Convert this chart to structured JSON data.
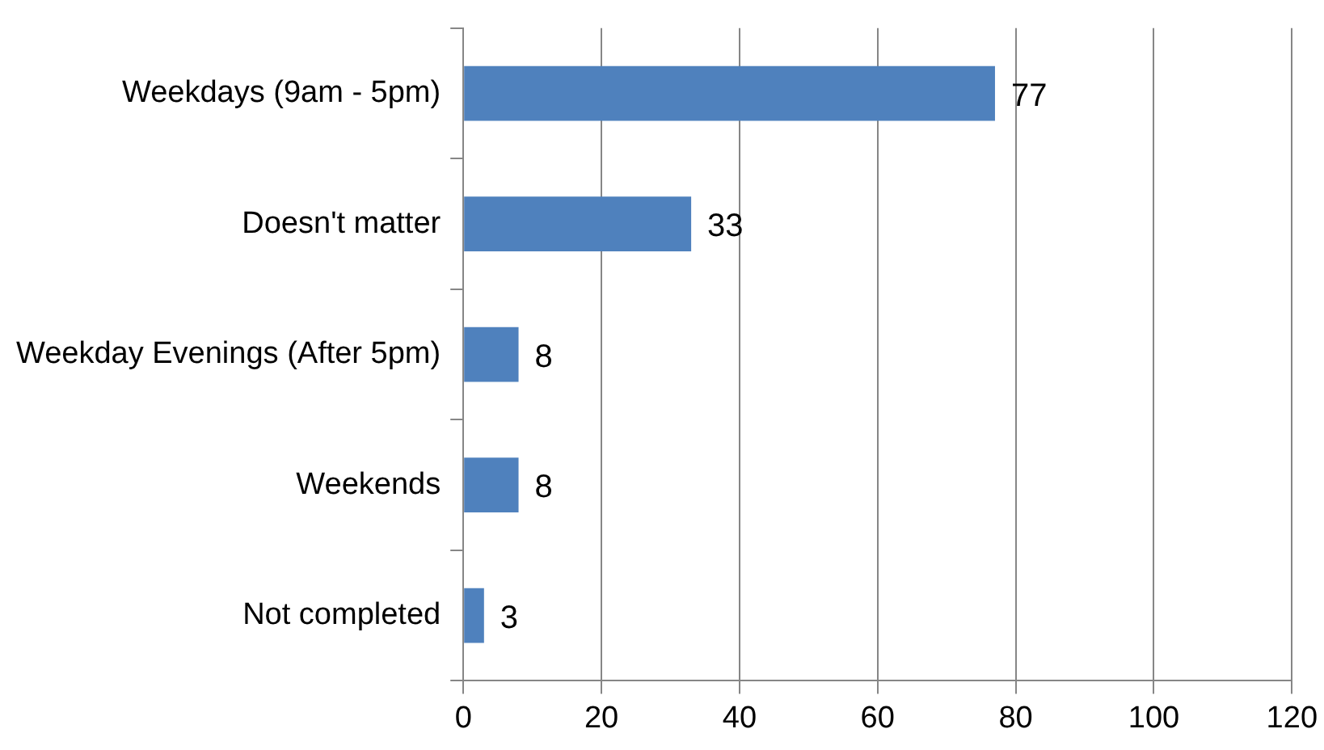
{
  "chart_data": {
    "type": "bar",
    "orientation": "horizontal",
    "categories": [
      "Weekdays (9am - 5pm)",
      "Doesn't matter",
      "Weekday Evenings (After 5pm)",
      "Weekends",
      "Not completed"
    ],
    "values": [
      77,
      33,
      8,
      8,
      3
    ],
    "color": "#4f81bd",
    "xlim": [
      0,
      120
    ],
    "xticks": [
      0,
      20,
      40,
      60,
      80,
      100,
      120
    ],
    "grid": "x",
    "data_labels": true,
    "legend": false
  }
}
